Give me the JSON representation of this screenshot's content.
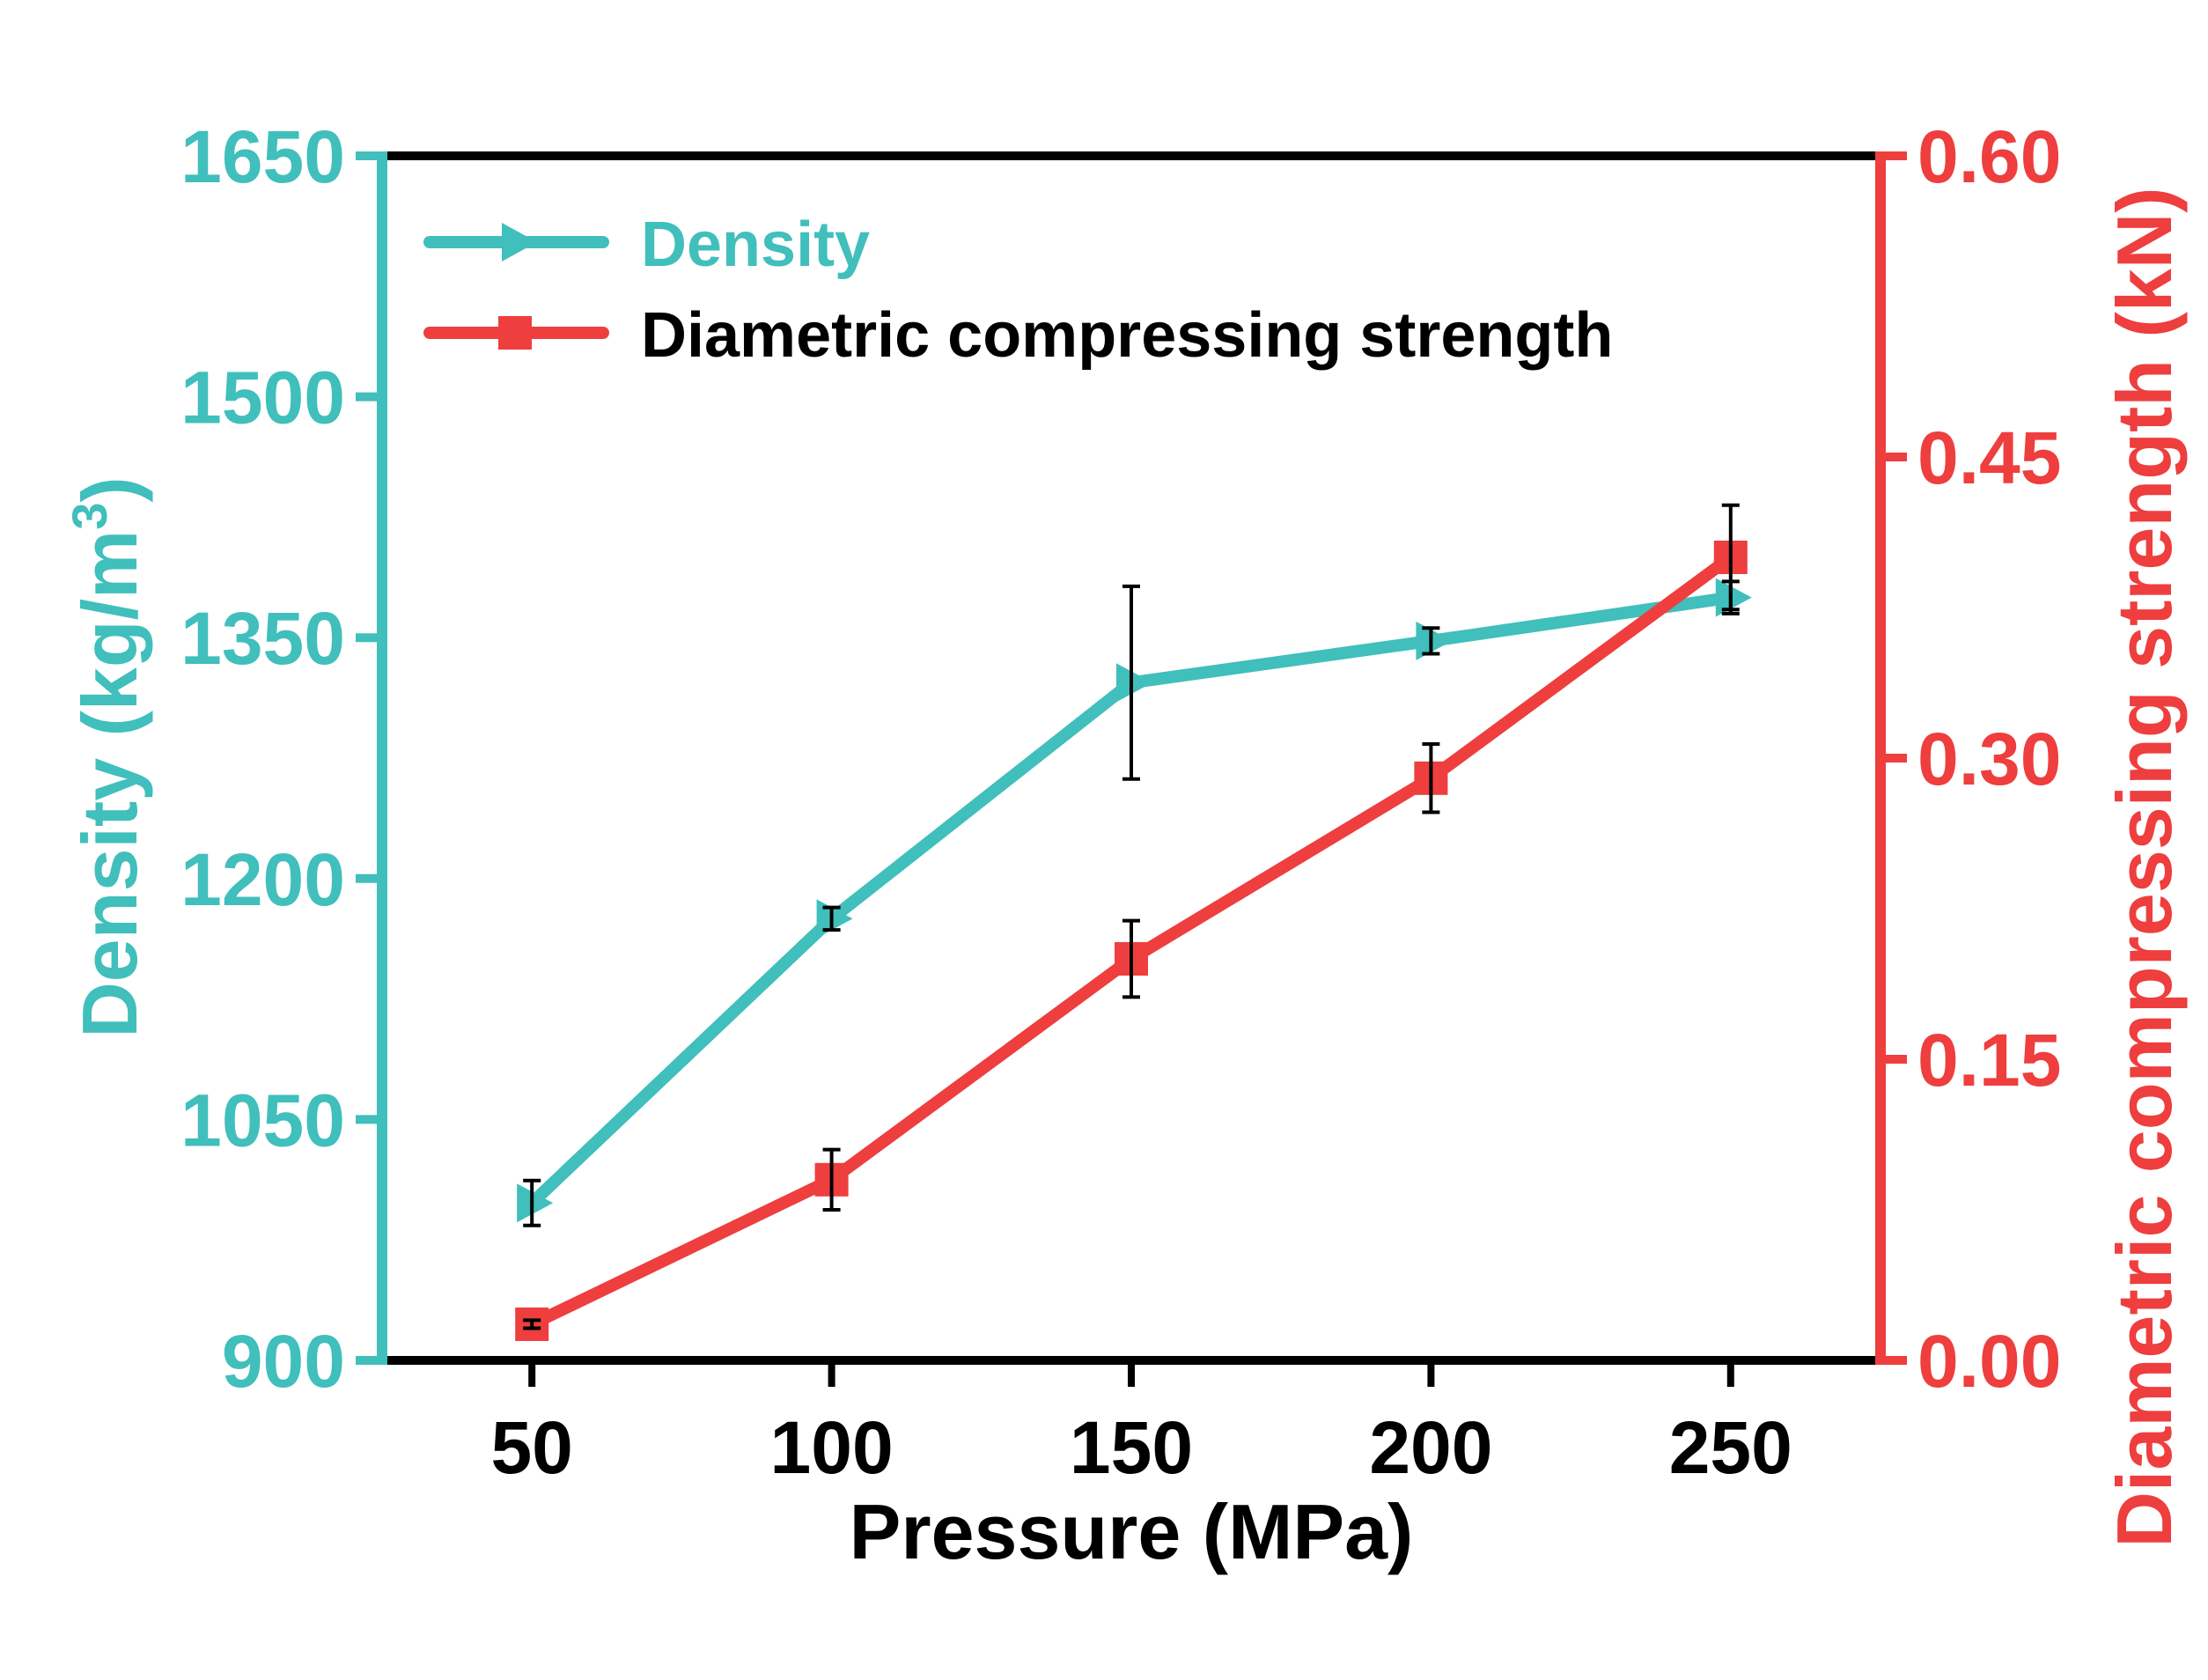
{
  "colors": {
    "density": "#40BFBC",
    "strength": "#EE3E3E",
    "axis": "#000000",
    "errorbar": "#000000"
  },
  "chart_data": {
    "type": "line",
    "title": "",
    "xlabel": "Pressure (MPa)",
    "ylabel_left": "Density (kg/m³)",
    "ylabel_left_base": "Density (kg/m",
    "ylabel_left_sup": "3",
    "ylabel_left_close": ")",
    "ylabel_right": "Diametric compressing strength (kN)",
    "x": [
      50,
      100,
      150,
      200,
      250
    ],
    "xlim": [
      25,
      275
    ],
    "x_ticks": [
      "50",
      "100",
      "150",
      "200",
      "250"
    ],
    "y_left_lim": [
      900,
      1650
    ],
    "y_left_ticks": [
      "900",
      "1050",
      "1200",
      "1350",
      "1500",
      "1650"
    ],
    "y_right_lim": [
      0.0,
      0.6
    ],
    "y_right_ticks": [
      "0.00",
      "0.15",
      "0.30",
      "0.45",
      "0.60"
    ],
    "legend_position": "top-left",
    "series": [
      {
        "name": "Density",
        "axis": "left",
        "marker": "triangle-right",
        "values": [
          998,
          1175,
          1322,
          1348,
          1375
        ],
        "errors": [
          14,
          7,
          60,
          8,
          10
        ]
      },
      {
        "name": "Diametric compressing strength",
        "axis": "right",
        "marker": "square",
        "values": [
          0.018,
          0.09,
          0.2,
          0.29,
          0.4
        ],
        "errors": [
          0.002,
          0.015,
          0.019,
          0.017,
          0.026
        ]
      }
    ]
  }
}
